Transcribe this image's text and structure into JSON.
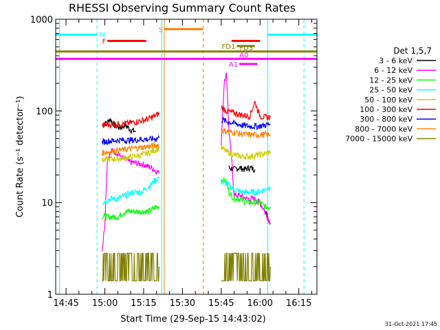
{
  "chart_data": {
    "type": "line",
    "title": "RHESSI Observing Summary Count Rates",
    "xlabel": "Start Time (29-Sep-15 14:43:02)",
    "ylabel": "Count Rate (s⁻¹ detector⁻¹)",
    "y_scale": "log",
    "ylim": [
      1,
      1000
    ],
    "xlim": [
      "14:41",
      "16:22"
    ],
    "x_ticks": [
      "14:45",
      "15:00",
      "15:15",
      "15:30",
      "15:45",
      "16:00",
      "16:15"
    ],
    "y_ticks": [
      1,
      10,
      100,
      1000
    ],
    "y_tick_labels": [
      "1",
      "10",
      "100",
      "1000"
    ],
    "legend_title": "Det 1,5,7",
    "legend_position": "right",
    "footer": "31-Oct-2021 17:45",
    "series": [
      {
        "name": "3 - 6 keV",
        "color": "#000000",
        "segments": [
          {
            "x": [
              "14:59",
              "15:01",
              "15:02",
              "15:04",
              "15:06",
              "15:08",
              "15:10",
              "15:12"
            ],
            "y": [
              70,
              75,
              82,
              68,
              66,
              70,
              62,
              60
            ]
          },
          {
            "x": [
              "15:48",
              "15:50",
              "15:52",
              "15:54",
              "15:56",
              "15:58"
            ],
            "y": [
              24,
              23,
              24,
              23,
              24,
              23
            ]
          },
          {
            "x": [
              "16:02",
              "16:03",
              "16:04"
            ],
            "y": [
              8,
              7,
              6
            ]
          }
        ]
      },
      {
        "name": "6 - 12 keV",
        "color": "#ff00ff",
        "segments": [
          {
            "x": [
              "14:59",
              "15:00",
              "15:01",
              "15:03",
              "15:06",
              "15:09",
              "15:12",
              "15:15",
              "15:18",
              "15:21"
            ],
            "y": [
              3,
              6,
              30,
              38,
              32,
              28,
              27,
              26,
              24,
              21
            ]
          },
          {
            "x": [
              "15:45",
              "15:46",
              "15:47",
              "15:48",
              "15:49",
              "15:50",
              "15:52",
              "15:55",
              "15:58",
              "16:00",
              "16:02",
              "16:04"
            ],
            "y": [
              45,
              180,
              270,
              60,
              30,
              12,
              12,
              11,
              11,
              10,
              8,
              6
            ]
          }
        ]
      },
      {
        "name": "12 - 25 keV",
        "color": "#00ff00",
        "segments": [
          {
            "x": [
              "14:59",
              "15:02",
              "15:05",
              "15:08",
              "15:11",
              "15:14",
              "15:17",
              "15:20",
              "15:21"
            ],
            "y": [
              7,
              7,
              7,
              8,
              8,
              8,
              8,
              9,
              9
            ]
          },
          {
            "x": [
              "15:45",
              "15:47",
              "15:48",
              "15:50",
              "15:52",
              "15:55",
              "15:58",
              "16:00",
              "16:02",
              "16:04"
            ],
            "y": [
              18,
              17,
              13,
              11,
              11,
              10,
              10,
              10,
              9,
              9
            ]
          }
        ]
      },
      {
        "name": "25 - 50 keV",
        "color": "#00ffff",
        "segments": [
          {
            "x": [
              "14:59",
              "15:02",
              "15:05",
              "15:08",
              "15:11",
              "15:14",
              "15:17",
              "15:20",
              "15:21"
            ],
            "y": [
              10,
              11,
              11,
              12,
              13,
              13,
              15,
              18,
              19
            ]
          },
          {
            "x": [
              "15:45",
              "15:47",
              "15:50",
              "15:53",
              "15:56",
              "15:59",
              "16:02",
              "16:04"
            ],
            "y": [
              17,
              16,
              14,
              13,
              13,
              13,
              14,
              15
            ]
          }
        ]
      },
      {
        "name": "50 - 100 keV",
        "color": "#cccc00",
        "segments": [
          {
            "x": [
              "14:59",
              "15:02",
              "15:05",
              "15:08",
              "15:11",
              "15:14",
              "15:17",
              "15:20",
              "15:21"
            ],
            "y": [
              29,
              30,
              30,
              31,
              32,
              33,
              35,
              38,
              40
            ]
          },
          {
            "x": [
              "15:45",
              "15:47",
              "15:50",
              "15:53",
              "15:56",
              "15:59",
              "16:02",
              "16:04"
            ],
            "y": [
              40,
              36,
              33,
              32,
              32,
              33,
              34,
              36
            ]
          }
        ]
      },
      {
        "name": "100 - 300 keV",
        "color": "#ff0000",
        "segments": [
          {
            "x": [
              "14:59",
              "15:02",
              "15:05",
              "15:08",
              "15:11",
              "15:14",
              "15:17",
              "15:20",
              "15:21"
            ],
            "y": [
              70,
              71,
              72,
              73,
              75,
              78,
              82,
              90,
              95
            ]
          },
          {
            "x": [
              "15:45",
              "15:47",
              "15:50",
              "15:53",
              "15:56",
              "15:58",
              "16:00",
              "16:02",
              "16:04"
            ],
            "y": [
              110,
              100,
              95,
              90,
              88,
              125,
              88,
              85,
              86
            ]
          }
        ]
      },
      {
        "name": "300 - 800 keV",
        "color": "#0000ff",
        "segments": [
          {
            "x": [
              "14:59",
              "15:02",
              "15:05",
              "15:08",
              "15:11",
              "15:14",
              "15:17",
              "15:20",
              "15:21"
            ],
            "y": [
              46,
              47,
              48,
              48,
              48,
              49,
              49,
              50,
              51
            ]
          },
          {
            "x": [
              "15:45",
              "15:47",
              "15:50",
              "15:53",
              "15:56",
              "15:59",
              "16:02",
              "16:04"
            ],
            "y": [
              80,
              77,
              73,
              70,
              68,
              68,
              70,
              72
            ]
          }
        ]
      },
      {
        "name": "800 - 7000 keV",
        "color": "#ff8000",
        "segments": [
          {
            "x": [
              "14:59",
              "15:02",
              "15:05",
              "15:08",
              "15:11",
              "15:14",
              "15:17",
              "15:20",
              "15:21"
            ],
            "y": [
              35,
              36,
              37,
              38,
              39,
              40,
              41,
              42,
              43
            ]
          },
          {
            "x": [
              "15:45",
              "15:47",
              "15:50",
              "15:53",
              "15:56",
              "15:59",
              "16:02",
              "16:04"
            ],
            "y": [
              62,
              60,
              58,
              56,
              55,
              55,
              55,
              55
            ]
          }
        ]
      },
      {
        "name": "7000 - 15000 keV",
        "color": "#808000",
        "segments": [
          {
            "x": [
              "14:59",
              "15:02",
              "15:05",
              "15:08",
              "15:11",
              "15:14",
              "15:17",
              "15:20",
              "15:21"
            ],
            "y": [
              2,
              2,
              2,
              2,
              2,
              2,
              2,
              2,
              2
            ]
          },
          {
            "x": [
              "15:45",
              "15:48",
              "15:51",
              "15:54",
              "15:57",
              "16:00",
              "16:03",
              "16:04"
            ],
            "y": [
              2,
              2,
              2,
              2,
              2,
              2,
              2,
              2
            ]
          }
        ]
      }
    ],
    "time_bars": [
      {
        "label": "N",
        "color": "#00ffff",
        "start": "14:41",
        "end": "14:57",
        "level": 680
      },
      {
        "label": "",
        "color": "#00ffff",
        "start": "16:03",
        "end": "16:22",
        "level": 680
      },
      {
        "label": "S",
        "color": "#ff8000",
        "start": "15:23",
        "end": "15:38",
        "level": 780
      },
      {
        "label": "F",
        "color": "#ff0000",
        "start": "15:01",
        "end": "15:16",
        "level": 580
      },
      {
        "label": "",
        "color": "#ff0000",
        "start": "15:49",
        "end": "16:00",
        "level": 580
      },
      {
        "label": "FD1",
        "color": "#808000",
        "start": "15:51",
        "end": "15:58",
        "level": 510
      },
      {
        "label": "FD3",
        "color": "#808000",
        "start": "14:41",
        "end": "16:22",
        "level": 445
      },
      {
        "label": "A0",
        "color": "#ff00ff",
        "start": "14:41",
        "end": "16:22",
        "level": 370
      },
      {
        "label": "A1",
        "color": "#ff00ff",
        "start": "15:52",
        "end": "15:59",
        "level": 325
      }
    ],
    "vertical_markers": [
      {
        "x": "14:42:30",
        "color": "#00ffff",
        "style": "solid"
      },
      {
        "x": "14:57",
        "color": "#00ffff",
        "style": "dashed"
      },
      {
        "x": "15:22",
        "color": "#00ffff",
        "style": "solid"
      },
      {
        "x": "15:23",
        "color": "#ff8000",
        "style": "solid"
      },
      {
        "x": "15:38",
        "color": "#ff8000",
        "style": "dashed"
      },
      {
        "x": "16:03",
        "color": "#00ffff",
        "style": "solid"
      },
      {
        "x": "16:17",
        "color": "#00ffff",
        "style": "dashed"
      }
    ]
  }
}
